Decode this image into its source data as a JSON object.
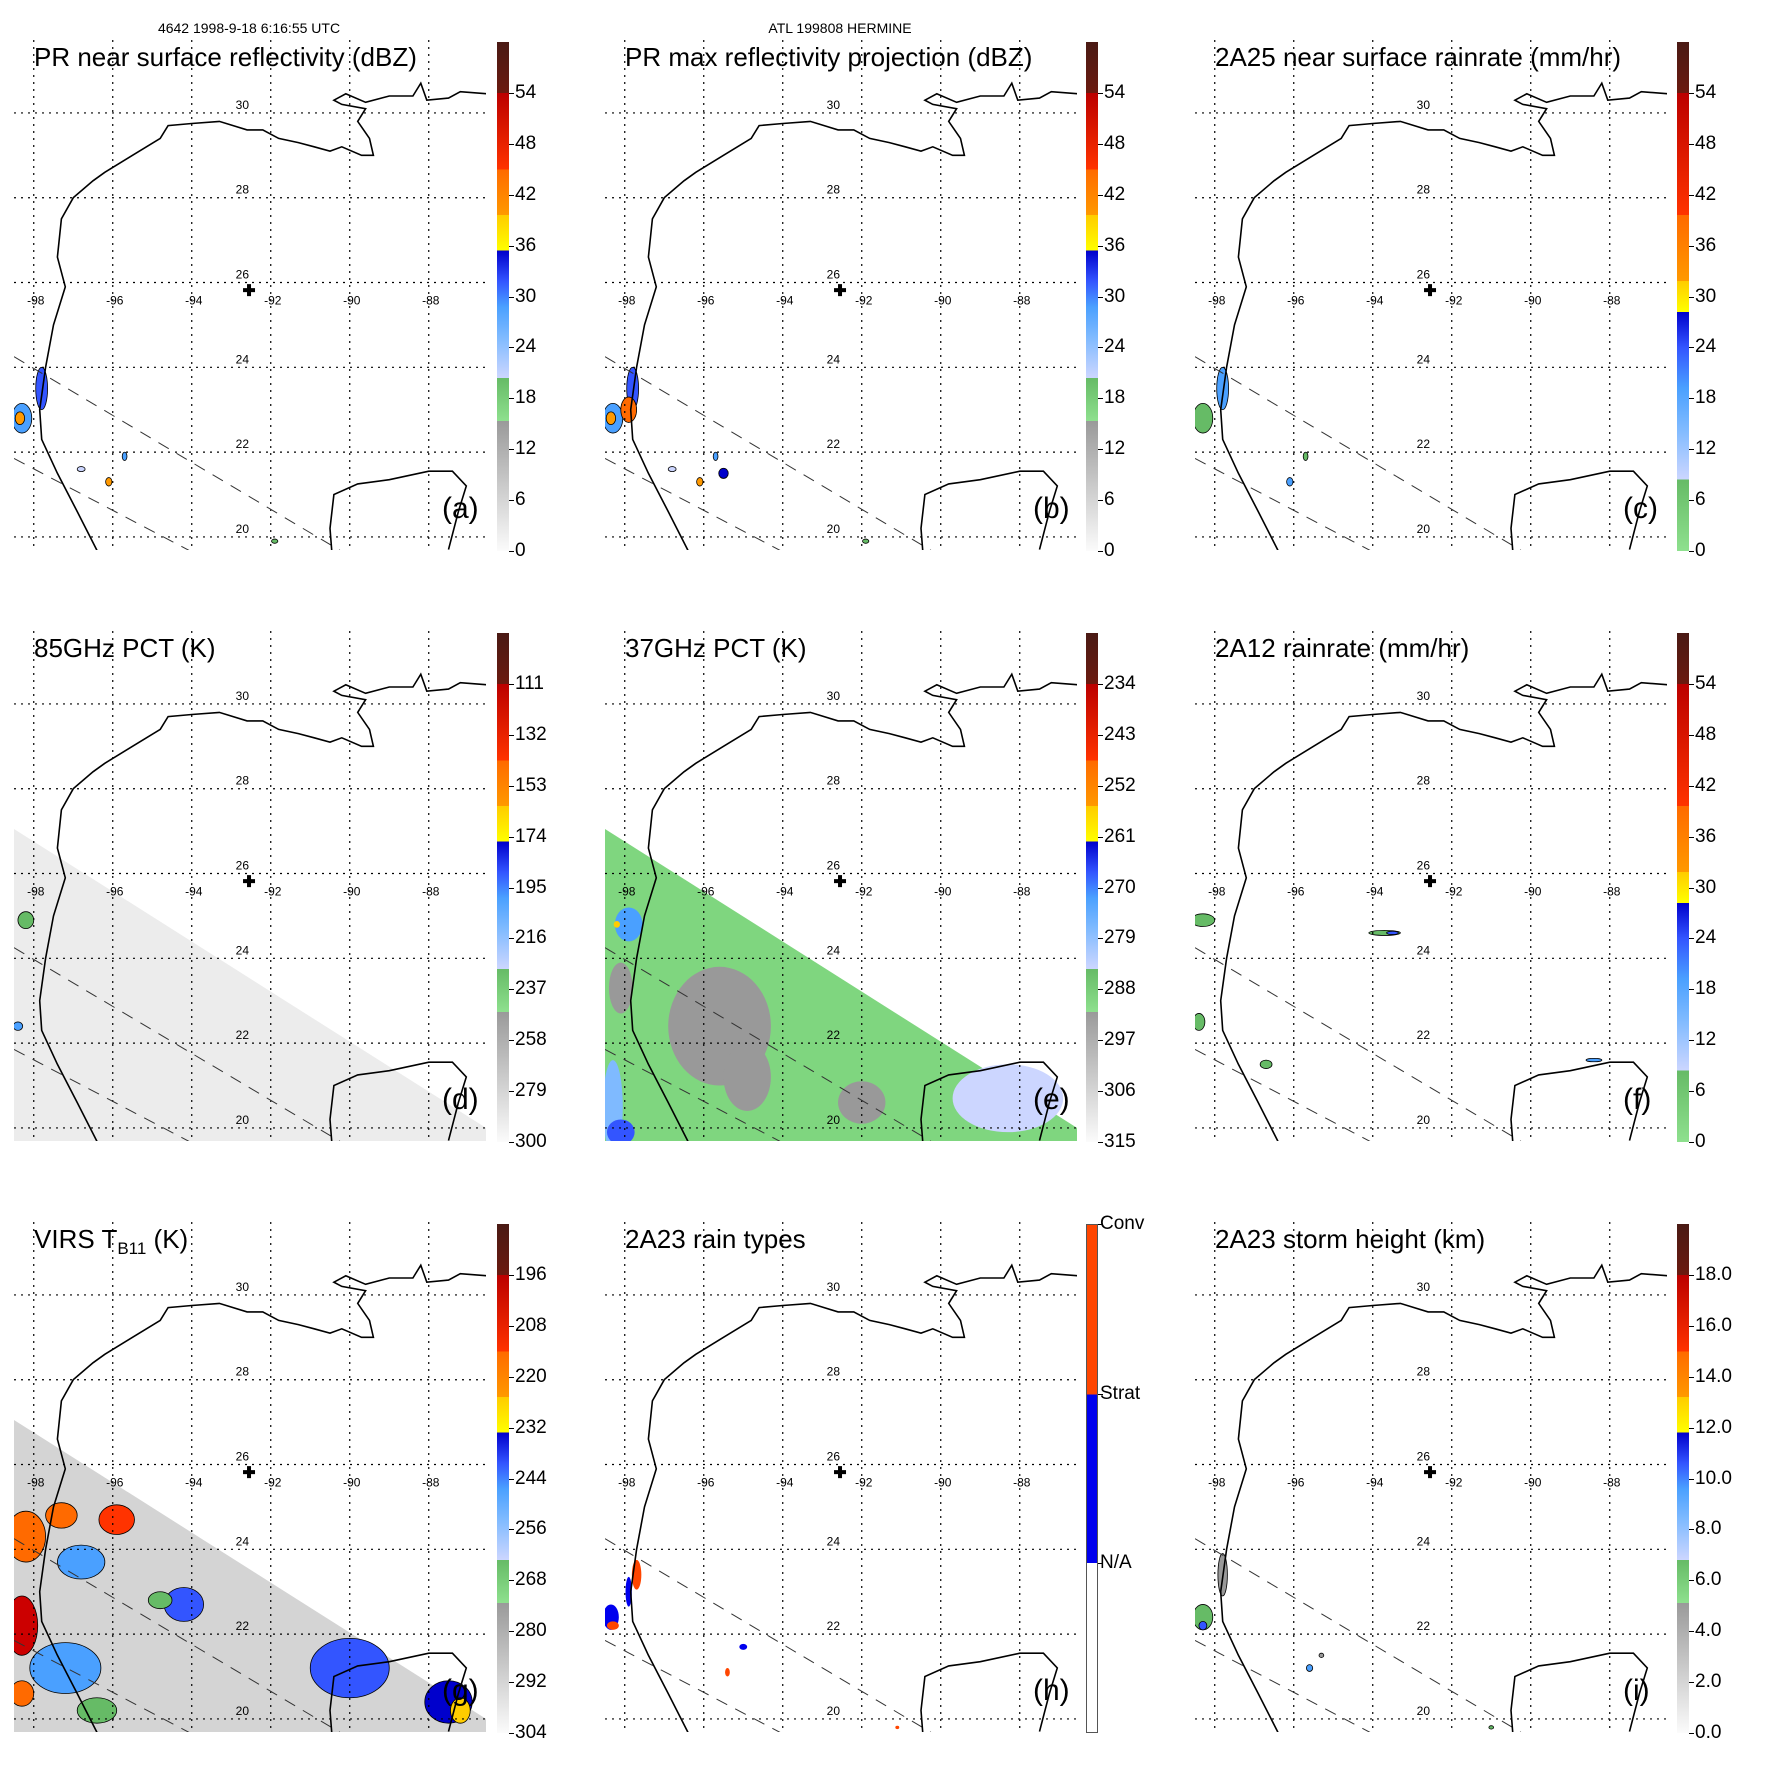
{
  "header": {
    "orbit_time": "4642 1998-9-18 6:16:55 UTC",
    "storm": "ATL 199808 HERMINE"
  },
  "map": {
    "lat_labels": [
      "30",
      "28",
      "26",
      "24",
      "22",
      "20"
    ],
    "lon_labels": [
      "-98",
      "-96",
      "-94",
      "-92",
      "-90",
      "-88"
    ],
    "storm_center_icon": "cross-icon"
  },
  "panels": [
    {
      "id": "a",
      "title": "PR near surface reflectivity (dBZ)",
      "label": "(a)",
      "colorbar": "dbz",
      "ticks": [
        "0",
        "6",
        "12",
        "18",
        "24",
        "30",
        "36",
        "42",
        "48",
        "54"
      ]
    },
    {
      "id": "b",
      "title": "PR max reflectivity projection (dBZ)",
      "label": "(b)",
      "colorbar": "dbz",
      "ticks": [
        "0",
        "6",
        "12",
        "18",
        "24",
        "30",
        "36",
        "42",
        "48",
        "54"
      ]
    },
    {
      "id": "c",
      "title": "2A25 near surface rainrate (mm/hr)",
      "label": "(c)",
      "colorbar": "rain",
      "ticks": [
        "0",
        "6",
        "12",
        "18",
        "24",
        "30",
        "36",
        "42",
        "48",
        "54"
      ]
    },
    {
      "id": "d",
      "title": "85GHz PCT (K)",
      "label": "(d)",
      "colorbar": "dbz",
      "ticks": [
        "300",
        "279",
        "258",
        "237",
        "216",
        "195",
        "174",
        "153",
        "132",
        "111"
      ]
    },
    {
      "id": "e",
      "title": "37GHz PCT (K)",
      "label": "(e)",
      "colorbar": "dbz",
      "ticks": [
        "315",
        "306",
        "297",
        "288",
        "279",
        "270",
        "261",
        "252",
        "243",
        "234"
      ]
    },
    {
      "id": "f",
      "title": "2A12 rainrate (mm/hr)",
      "label": "(f)",
      "colorbar": "rain",
      "ticks": [
        "0",
        "6",
        "12",
        "18",
        "24",
        "30",
        "36",
        "42",
        "48",
        "54"
      ]
    },
    {
      "id": "g",
      "title": "VIRS T",
      "title_sub": "B11",
      "title_suffix": " (K)",
      "label": "(g)",
      "colorbar": "dbz",
      "ticks": [
        "304",
        "292",
        "280",
        "268",
        "256",
        "244",
        "232",
        "220",
        "208",
        "196"
      ]
    },
    {
      "id": "h",
      "title": "2A23 rain types",
      "label": "(h)",
      "colorbar": "type",
      "type_ticks": [
        "N/A",
        "Strat",
        "Conv"
      ]
    },
    {
      "id": "i",
      "title": "2A23 storm height (km)",
      "label": "(i)",
      "colorbar": "dbz",
      "ticks": [
        "0.0",
        "2.0",
        "4.0",
        "6.0",
        "8.0",
        "10.0",
        "12.0",
        "14.0",
        "16.0",
        "18.0"
      ]
    }
  ],
  "colors": {
    "coast": "#000000",
    "swath_gray": "#e2e2e2",
    "swath_green": "#7fd67f",
    "conv": "#ff4500",
    "strat": "#0000ee"
  }
}
